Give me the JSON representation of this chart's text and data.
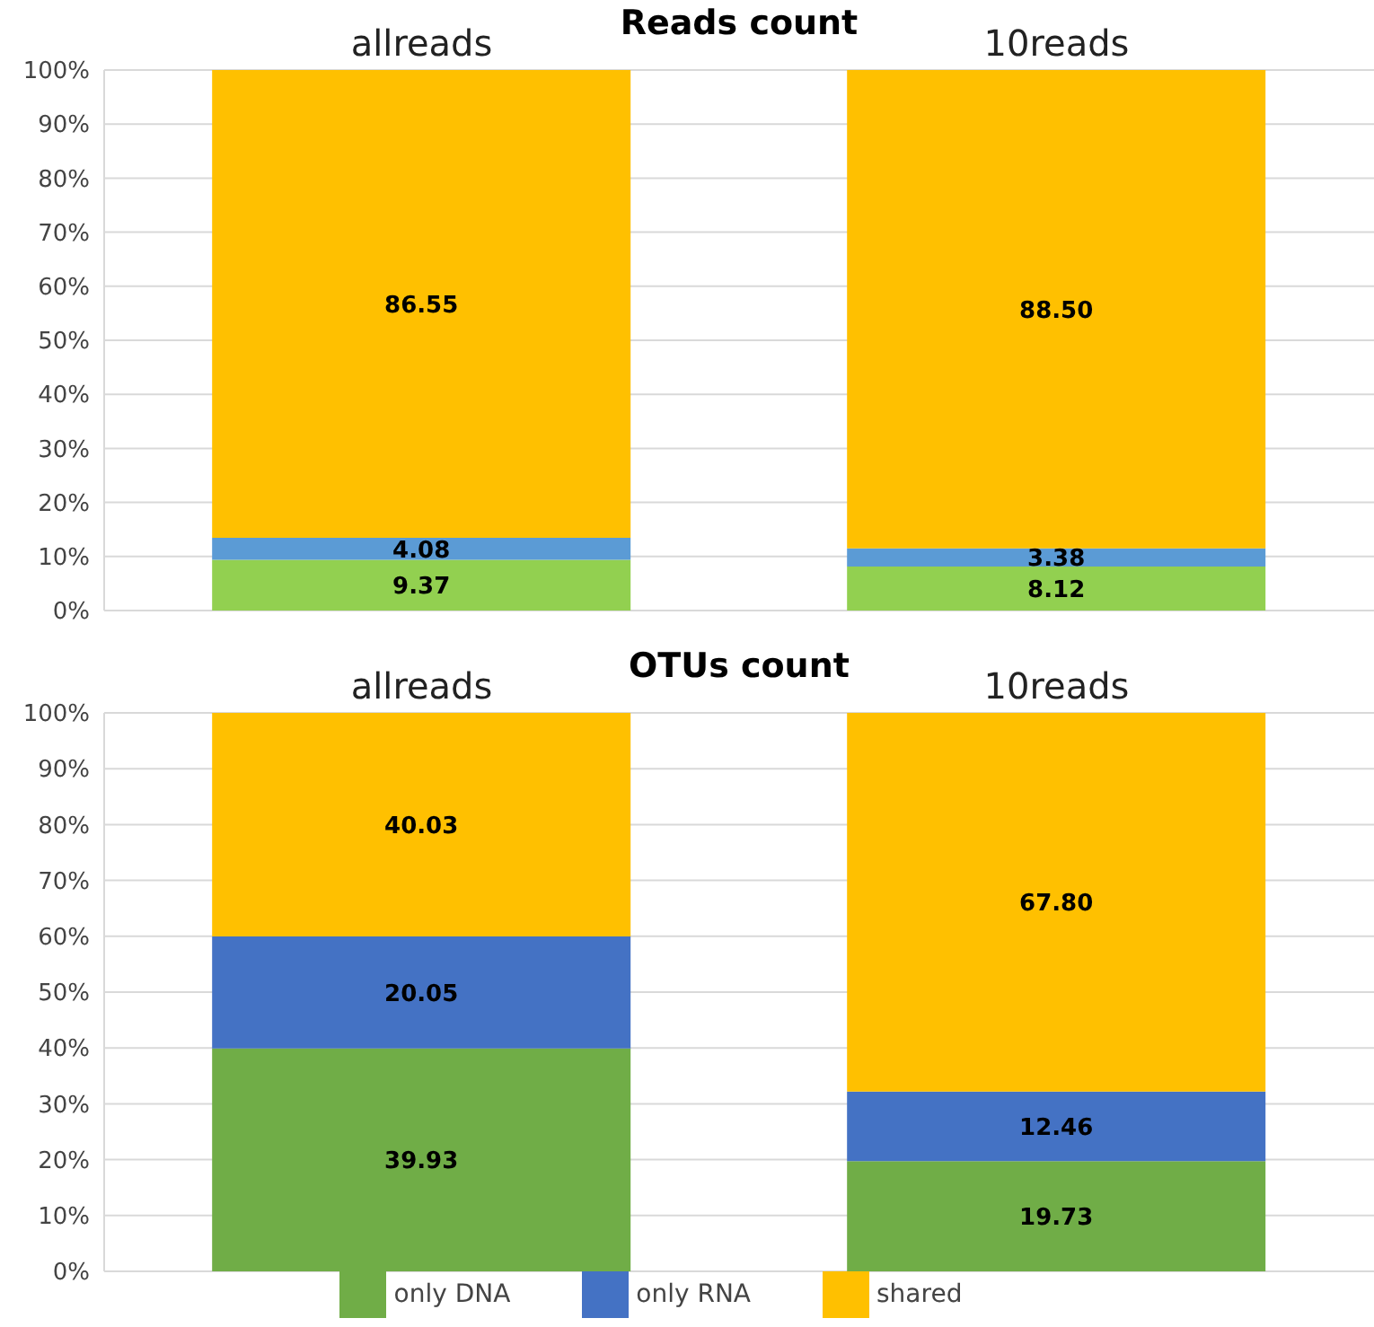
{
  "chart_data": [
    {
      "type": "bar",
      "title": "Reads count",
      "categories": [
        "allreads",
        "10reads"
      ],
      "stacked": true,
      "grid": "y",
      "legend": false,
      "series": [
        {
          "color": "#92d050",
          "values": [
            9.37,
            8.12
          ],
          "value_labels": [
            "9.37",
            "8.12"
          ]
        },
        {
          "color": "#5b9bd5",
          "values": [
            4.08,
            3.38
          ],
          "value_labels": [
            "4.08",
            "3.38"
          ]
        },
        {
          "color": "#ffc000",
          "values": [
            86.55,
            88.5
          ],
          "value_labels": [
            "86.55",
            "88.50"
          ]
        }
      ],
      "ylim": [
        0,
        100
      ],
      "yticks": [
        {
          "value": 0,
          "label": "0%"
        },
        {
          "value": 10,
          "label": "10%"
        },
        {
          "value": 20,
          "label": "20%"
        },
        {
          "value": 30,
          "label": "30%"
        },
        {
          "value": 40,
          "label": "40%"
        },
        {
          "value": 50,
          "label": "50%"
        },
        {
          "value": 60,
          "label": "60%"
        },
        {
          "value": 70,
          "label": "70%"
        },
        {
          "value": 80,
          "label": "80%"
        },
        {
          "value": 90,
          "label": "90%"
        },
        {
          "value": 100,
          "label": "100%"
        }
      ]
    },
    {
      "type": "bar",
      "title": "OTUs count",
      "categories": [
        "allreads",
        "10reads"
      ],
      "stacked": true,
      "grid": "y",
      "legend": "bottom",
      "series": [
        {
          "name": "only DNA",
          "color": "#70ad47",
          "values": [
            39.93,
            19.73
          ],
          "value_labels": [
            "39.93",
            "19.73"
          ]
        },
        {
          "name": "only RNA",
          "color": "#4472c4",
          "values": [
            20.05,
            12.46
          ],
          "value_labels": [
            "20.05",
            "12.46"
          ]
        },
        {
          "name": "shared",
          "color": "#ffc000",
          "values": [
            40.03,
            67.8
          ],
          "value_labels": [
            "40.03",
            "67.80"
          ]
        }
      ],
      "ylim": [
        0,
        100
      ],
      "yticks": [
        {
          "value": 0,
          "label": "0%"
        },
        {
          "value": 10,
          "label": "10%"
        },
        {
          "value": 20,
          "label": "20%"
        },
        {
          "value": 30,
          "label": "30%"
        },
        {
          "value": 40,
          "label": "40%"
        },
        {
          "value": 50,
          "label": "50%"
        },
        {
          "value": 60,
          "label": "60%"
        },
        {
          "value": 70,
          "label": "70%"
        },
        {
          "value": 80,
          "label": "80%"
        },
        {
          "value": 90,
          "label": "90%"
        },
        {
          "value": 100,
          "label": "100%"
        }
      ]
    }
  ]
}
